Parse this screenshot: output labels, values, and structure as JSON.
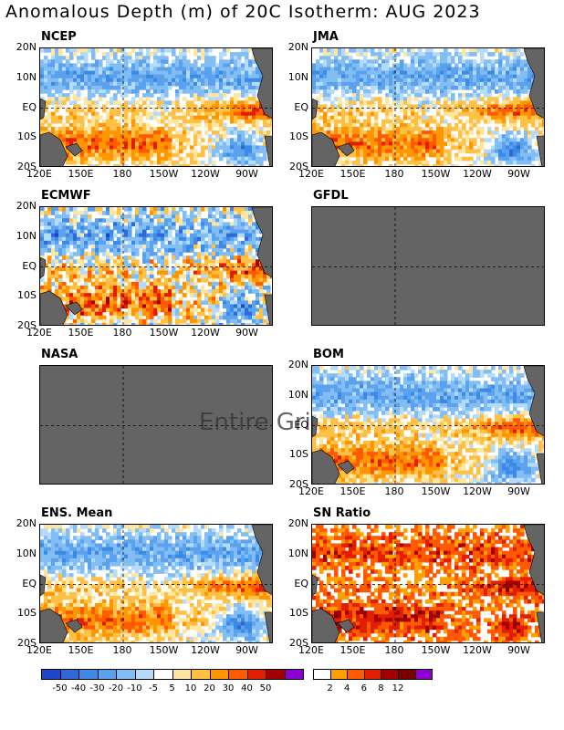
{
  "title": "Anomalous Depth (m) of 20C Isotherm: AUG 2023",
  "lat_labels": [
    "20N",
    "10N",
    "EQ",
    "10S",
    "20S"
  ],
  "lon_labels": [
    "120E",
    "150E",
    "180",
    "150W",
    "120W",
    "90W"
  ],
  "panels": [
    {
      "name": "NCEP",
      "status": "data"
    },
    {
      "name": "JMA",
      "status": "data"
    },
    {
      "name": "ECMWF",
      "status": "data"
    },
    {
      "name": "GFDL",
      "status": "missing"
    },
    {
      "name": "NASA",
      "status": "missing",
      "note": "Entire Gri"
    },
    {
      "name": "BOM",
      "status": "data"
    },
    {
      "name": "ENS. Mean",
      "status": "data"
    },
    {
      "name": "SN Ratio",
      "status": "data"
    }
  ],
  "colorbar_anomaly": {
    "labels": [
      "-50",
      "-40",
      "-30",
      "-20",
      "-10",
      "-5",
      "5",
      "10",
      "20",
      "30",
      "40",
      "50"
    ],
    "colors": [
      "#1e46c8",
      "#2d6ad8",
      "#3c8ae4",
      "#5aa2ee",
      "#82bef4",
      "#b4dcfa",
      "#ffffff",
      "#ffe6a0",
      "#ffc046",
      "#ff9600",
      "#ff5a00",
      "#e11e00",
      "#a50000",
      "#8c00d2"
    ]
  },
  "colorbar_sn": {
    "labels": [
      "2",
      "4",
      "6",
      "8",
      "12"
    ],
    "colors": [
      "#ffffff",
      "#ffa000",
      "#ff5a00",
      "#e11e00",
      "#a50000",
      "#780000",
      "#8c00d2"
    ]
  },
  "chart_data": {
    "type": "heatmap",
    "title": "Anomalous Depth (m) of 20C Isotherm: AUG 2023",
    "xlabel": "",
    "ylabel": "",
    "x_ticks": [
      "120E",
      "150E",
      "180",
      "150W",
      "120W",
      "90W"
    ],
    "y_ticks": [
      "20N",
      "10N",
      "EQ",
      "10S",
      "20S"
    ],
    "xlim": [
      "120E",
      "70W"
    ],
    "ylim": [
      "20S",
      "20N"
    ],
    "grid": "dashed lines at 180 and EQ",
    "panels": [
      "NCEP",
      "JMA",
      "ECMWF",
      "GFDL",
      "NASA",
      "BOM",
      "ENS. Mean",
      "SN Ratio"
    ],
    "missing_panels": [
      "GFDL",
      "NASA"
    ],
    "anomaly_levels": [
      -50,
      -40,
      -30,
      -20,
      -10,
      -5,
      5,
      10,
      20,
      30,
      40,
      50
    ],
    "sn_levels": [
      2,
      4,
      6,
      8,
      12
    ]
  }
}
